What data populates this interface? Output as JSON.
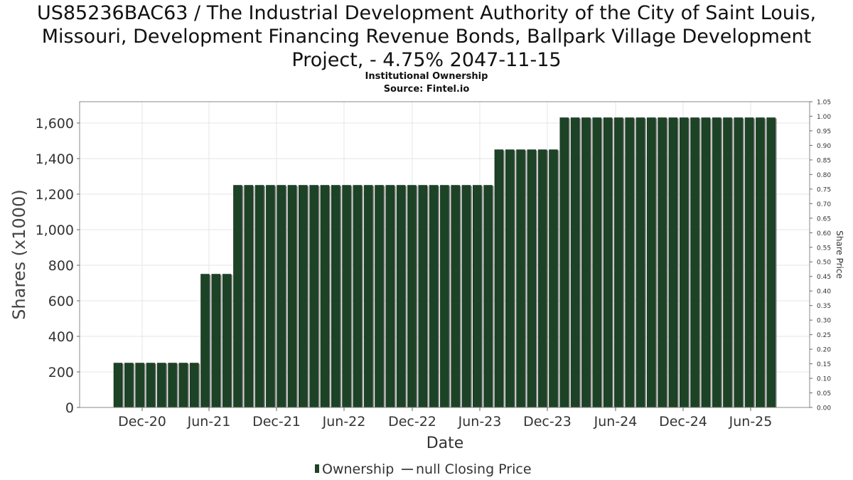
{
  "chart_data": {
    "type": "bar",
    "title": "US85236BAC63 / The Industrial Development Authority of the City of Saint Louis, Missouri, Development Financing Revenue Bonds, Ballpark Village Development Project, - 4.75% 2047-11-15",
    "subtitle": "Institutional Ownership",
    "source": "Source: Fintel.io",
    "xlabel": "Date",
    "ylabel": "Shares (x1000)",
    "y2label": "Share Price",
    "x_ticks": [
      "Dec-20",
      "Jun-21",
      "Dec-21",
      "Jun-22",
      "Dec-22",
      "Jun-23",
      "Dec-23",
      "Jun-24",
      "Dec-24",
      "Jun-25"
    ],
    "ylim": [
      0,
      1720
    ],
    "y_ticks": [
      "0",
      "200",
      "400",
      "600",
      "800",
      "1,000",
      "1,200",
      "1,400",
      "1,600"
    ],
    "y2lim": [
      0,
      1.05
    ],
    "y2_ticks": [
      "0.00",
      "0.05",
      "0.10",
      "0.15",
      "0.20",
      "0.25",
      "0.30",
      "0.35",
      "0.40",
      "0.45",
      "0.50",
      "0.55",
      "0.60",
      "0.65",
      "0.70",
      "0.75",
      "0.80",
      "0.85",
      "0.90",
      "0.95",
      "1.00",
      "1.05"
    ],
    "series": [
      {
        "name": "Ownership",
        "color": "#1c4325",
        "values": [
          250,
          250,
          250,
          250,
          250,
          250,
          250,
          250,
          750,
          750,
          750,
          1250,
          1250,
          1250,
          1250,
          1250,
          1250,
          1250,
          1250,
          1250,
          1250,
          1250,
          1250,
          1250,
          1250,
          1250,
          1250,
          1250,
          1250,
          1250,
          1250,
          1250,
          1250,
          1250,
          1250,
          1450,
          1450,
          1450,
          1450,
          1450,
          1450,
          1630,
          1630,
          1630,
          1630,
          1630,
          1630,
          1630,
          1630,
          1630,
          1630,
          1630,
          1630,
          1630,
          1630,
          1630,
          1630,
          1630,
          1630,
          1630,
          1630
        ]
      }
    ],
    "legend": [
      {
        "name": "Ownership",
        "marker": "bar",
        "color": "#1c4325"
      },
      {
        "name": "null Closing Price",
        "marker": "line",
        "color": "#555555"
      }
    ],
    "legend_position": "bottom",
    "grid": true
  }
}
